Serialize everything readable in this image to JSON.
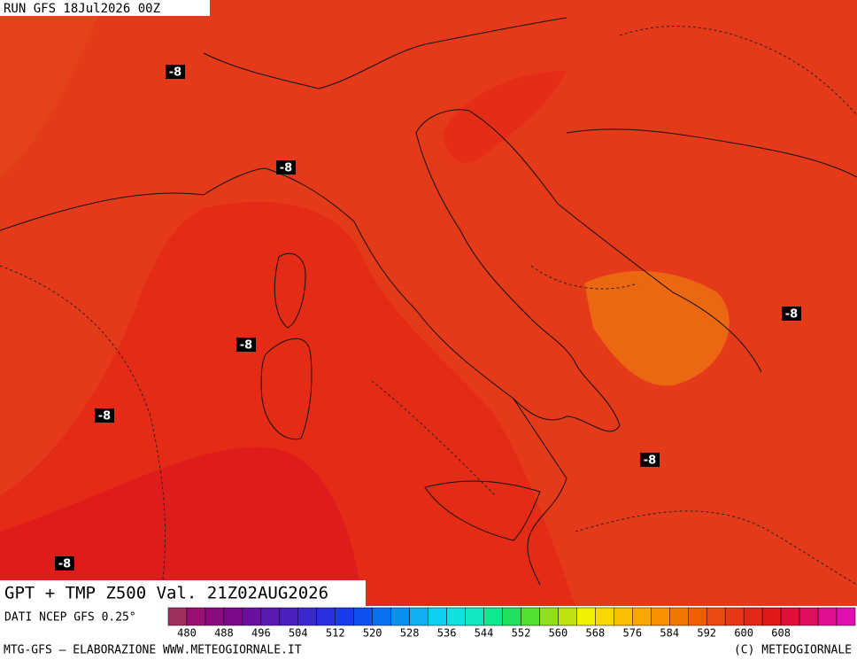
{
  "run_label": "RUN GFS 18Jul2026 00Z",
  "contour_labels": [
    "-8",
    "-8",
    "-8",
    "-8",
    "-8",
    "-8",
    "-8"
  ],
  "title": "GPT + TMP Z500 Val. 21Z02AUG2026",
  "source": "DATI NCEP GFS 0.25°",
  "legend": {
    "ticks": [
      480,
      488,
      496,
      504,
      512,
      520,
      528,
      536,
      544,
      552,
      560,
      568,
      576,
      584,
      592,
      600,
      608
    ],
    "colors": [
      "#a03060",
      "#9a1070",
      "#8a0a80",
      "#7a0a8a",
      "#6a10a0",
      "#5a1ab0",
      "#4a20c0",
      "#3a28d0",
      "#2a30e0",
      "#1a3af0",
      "#1050f0",
      "#0a70f0",
      "#0a90f0",
      "#10b0f0",
      "#10d0f0",
      "#10e0e0",
      "#10e8c0",
      "#10e890",
      "#20e060",
      "#50e030",
      "#90e020",
      "#c0e010",
      "#f0f000",
      "#f8d800",
      "#f8c000",
      "#f8a800",
      "#f89000",
      "#f07800",
      "#f06000",
      "#ec4a10",
      "#e83818",
      "#e42818",
      "#e01818",
      "#e01038",
      "#e01060",
      "#e01090",
      "#e010b0"
    ]
  },
  "credit_left": "MTG-GFS — ELABORAZIONE WWW.METEOGIORNALE.IT",
  "credit_right": "(C) METEOGIORNALE"
}
